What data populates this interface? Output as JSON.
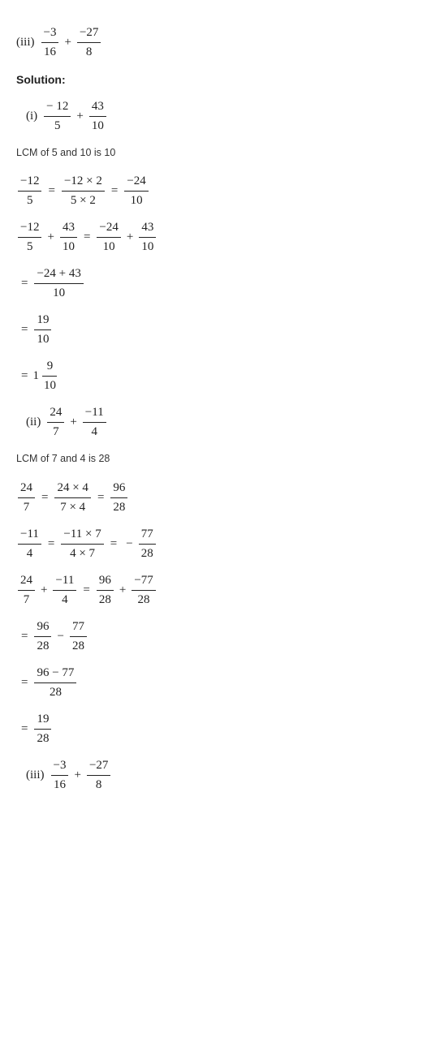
{
  "q_iii_top": {
    "label": "(iii)",
    "f1_num": "−3",
    "f1_den": "16",
    "op": "+",
    "f2_num": "−27",
    "f2_den": "8"
  },
  "solution_heading": "Solution:",
  "part_i": {
    "label": "(i)",
    "prompt": {
      "f1_num": "− 12",
      "f1_den": "5",
      "op": "+",
      "f2_num": "43",
      "f2_den": "10"
    },
    "lcm_note": "LCM of 5 and 10 is 10",
    "step_a": {
      "f1_num": "−12",
      "f1_den": "5",
      "f2_num": "−12 × 2",
      "f2_den": "5 × 2",
      "f3_num": "−24",
      "f3_den": "10"
    },
    "step_b": {
      "l1_num": "−12",
      "l1_den": "5",
      "op1": "+",
      "l2_num": "43",
      "l2_den": "10",
      "r1_num": "−24",
      "r1_den": "10",
      "op2": "+",
      "r2_num": "43",
      "r2_den": "10"
    },
    "step_c": {
      "num": "−24 + 43",
      "den": "10"
    },
    "step_d": {
      "num": "19",
      "den": "10"
    },
    "step_e": {
      "whole": "1",
      "num": "9",
      "den": "10"
    }
  },
  "part_ii": {
    "label": "(ii)",
    "prompt": {
      "f1_num": "24",
      "f1_den": "7",
      "op": "+",
      "f2_num": "−11",
      "f2_den": "4"
    },
    "lcm_note": "LCM of 7 and 4 is 28",
    "step_a": {
      "f1_num": "24",
      "f1_den": "7",
      "f2_num": "24 × 4",
      "f2_den": "7 × 4",
      "f3_num": "96",
      "f3_den": "28"
    },
    "step_b": {
      "f1_num": "−11",
      "f1_den": "4",
      "f2_num": "−11 × 7",
      "f2_den": "4 × 7",
      "neg": "−",
      "f3_num": "77",
      "f3_den": "28"
    },
    "step_c": {
      "l1_num": "24",
      "l1_den": "7",
      "op1": "+",
      "l2_num": "−11",
      "l2_den": "4",
      "r1_num": "96",
      "r1_den": "28",
      "op2": "+",
      "r2_num": "−77",
      "r2_den": "28"
    },
    "step_d": {
      "f1_num": "96",
      "f1_den": "28",
      "op": "−",
      "f2_num": "77",
      "f2_den": "28"
    },
    "step_e": {
      "num": "96 − 77",
      "den": "28"
    },
    "step_f": {
      "num": "19",
      "den": "28"
    }
  },
  "q_iii_bottom": {
    "label": "(iii)",
    "f1_num": "−3",
    "f1_den": "16",
    "op": "+",
    "f2_num": "−27",
    "f2_den": "8"
  }
}
